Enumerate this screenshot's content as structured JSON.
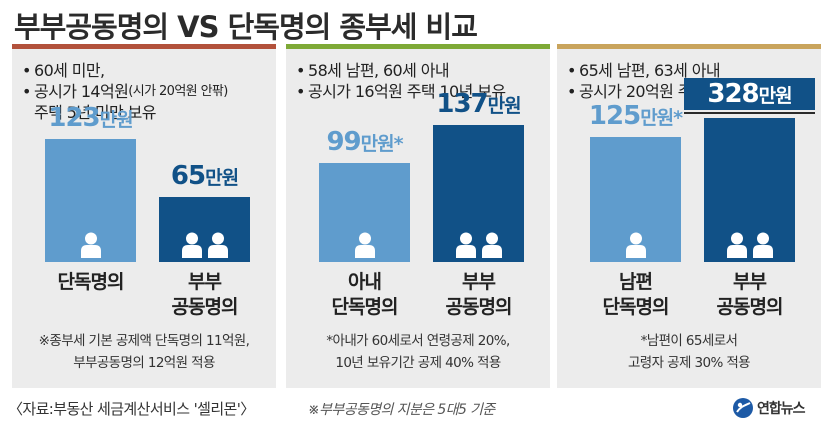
{
  "title": "부부공동명의 VS 단독명의 종부세 비교",
  "colors": {
    "light_bar": "#5f9ccd",
    "dark_bar": "#115187",
    "panel_bg": "#ececec"
  },
  "panels": [
    {
      "top_color": "#b2513b",
      "info": [
        {
          "bullet": "•",
          "text": "60세 미만,"
        },
        {
          "bullet": "•",
          "text": "공시가 14억원",
          "small": "(시가 20억원 안팎)"
        },
        {
          "bullet": "",
          "text": "주택 5년 미만 보유"
        }
      ],
      "bars": [
        {
          "num": "123",
          "unit": "만원",
          "category": [
            "단독명의"
          ],
          "persons": 1
        },
        {
          "num": "65",
          "unit": "만원",
          "category": [
            "부부",
            "공동명의"
          ],
          "persons": 2
        }
      ],
      "note": [
        "※종부세 기본 공제액 단독명의 11억원,",
        "부부공동명의 12억원 적용"
      ]
    },
    {
      "top_color": "#7ea936",
      "info": [
        {
          "bullet": "•",
          "text": "58세 남편, 60세 아내"
        },
        {
          "bullet": "•",
          "text": "공시가 16억원 주택 10년 보유"
        }
      ],
      "bars": [
        {
          "num": "99",
          "unit": "만원*",
          "category": [
            "아내",
            "단독명의"
          ],
          "persons": 1
        },
        {
          "num": "137",
          "unit": "만원",
          "category": [
            "부부",
            "공동명의"
          ],
          "persons": 2
        }
      ],
      "note": [
        "*아내가 60세로서 연령공제 20%,",
        "10년 보유기간 공제 40% 적용"
      ]
    },
    {
      "top_color": "#c9a45c",
      "info": [
        {
          "bullet": "•",
          "text": "65세 남편, 63세 아내"
        },
        {
          "bullet": "•",
          "text": "공시가 20억원 주택 15년 보유"
        }
      ],
      "bars": [
        {
          "num": "125",
          "unit": "만원*",
          "category": [
            "남편",
            "단독명의"
          ],
          "persons": 1
        },
        {
          "num": "328",
          "unit": "만원",
          "category": [
            "부부",
            "공동명의"
          ],
          "persons": 2
        }
      ],
      "note": [
        "*남편이 65세로서",
        "고령자 공제 30% 적용"
      ]
    }
  ],
  "chart_data": {
    "type": "bar",
    "title": "부부공동명의 VS 단독명의 종부세 비교",
    "unit": "만원",
    "groups": [
      {
        "categories": [
          "단독명의",
          "부부 공동명의"
        ],
        "values": [
          123,
          65
        ]
      },
      {
        "categories": [
          "아내 단독명의",
          "부부 공동명의"
        ],
        "values": [
          99,
          137
        ]
      },
      {
        "categories": [
          "남편 단독명의",
          "부부 공동명의"
        ],
        "values": [
          125,
          328
        ]
      }
    ]
  },
  "footer": {
    "source": "〈자료:부동산 세금계산서비스 '셀리몬'〉",
    "note": "※부부공동명의 지분은 5대5 기준",
    "logo": "연합뉴스"
  }
}
